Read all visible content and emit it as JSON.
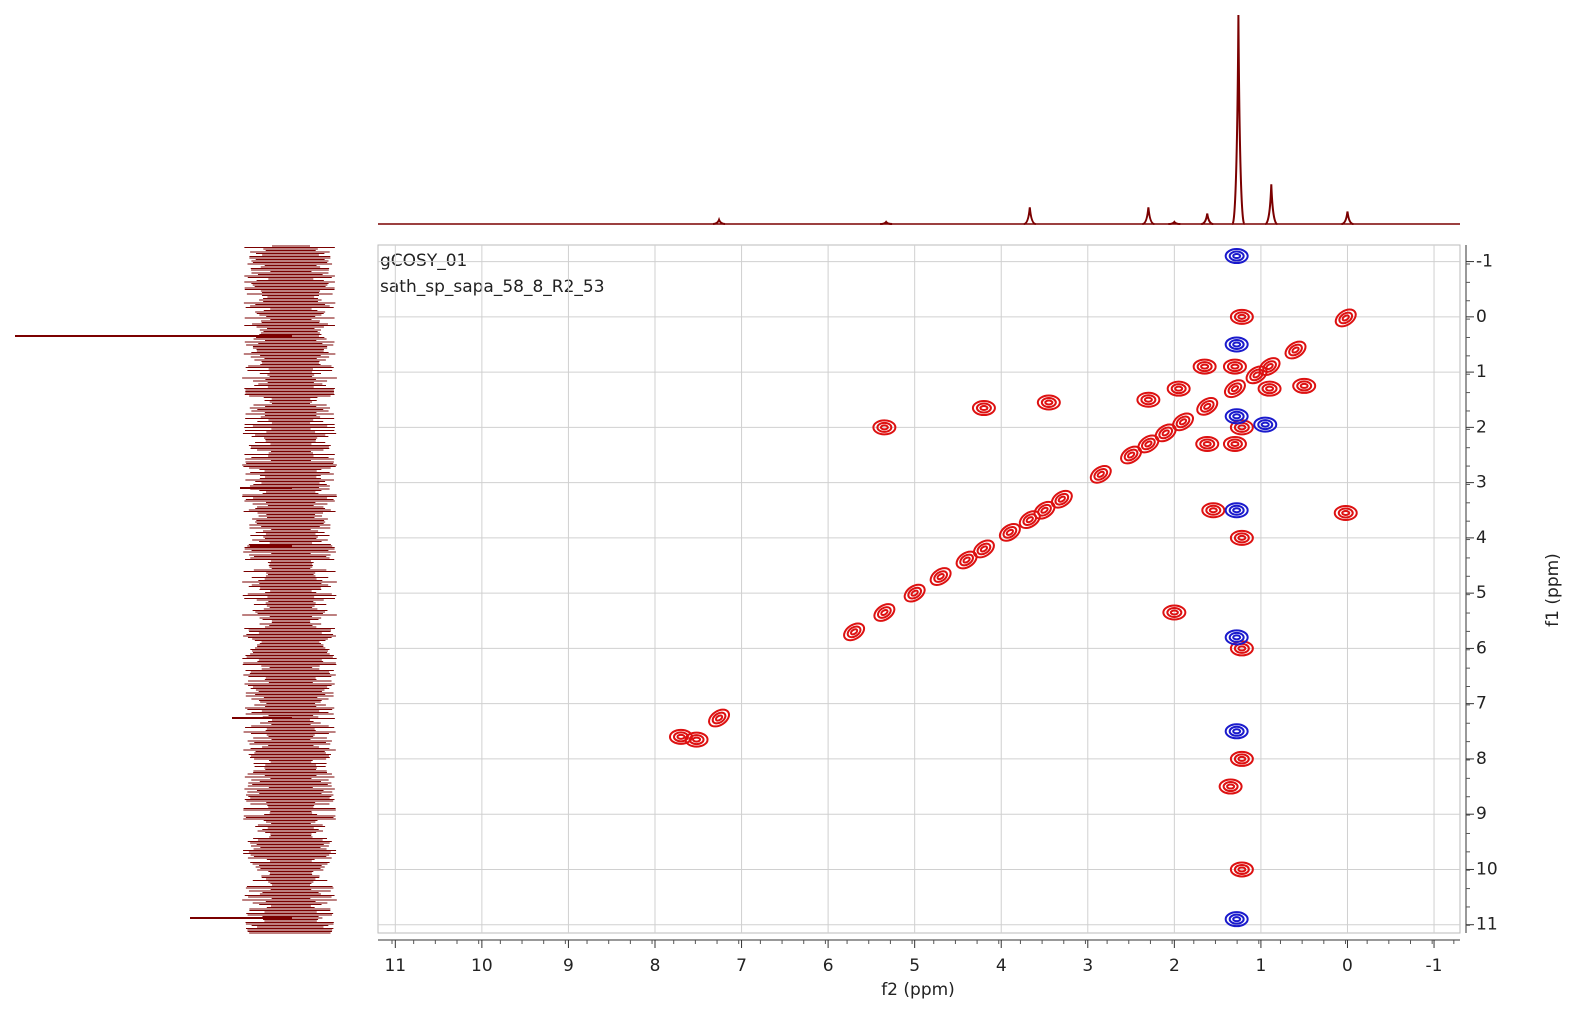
{
  "chart_data": {
    "type": "contour",
    "annotations": [
      "gCOSY_01",
      "sath_sp_sapa_58_8_R2_53"
    ],
    "x_label": "f2 (ppm)",
    "y_label": "f1 (ppm)",
    "xlim": [
      11.2,
      -1.3
    ],
    "ylim": [
      -1.3,
      11.15
    ],
    "xticks": [
      11,
      10,
      9,
      8,
      7,
      6,
      5,
      4,
      3,
      2,
      1,
      0,
      -1
    ],
    "yticks": [
      -1,
      0,
      1,
      2,
      3,
      4,
      5,
      6,
      7,
      8,
      9,
      10,
      11
    ],
    "grid": true,
    "projection": {
      "color": "#7b0000",
      "ylim": [
        0,
        100
      ],
      "x": [
        7.26,
        5.33,
        3.67,
        2.3,
        2.0,
        1.62,
        1.26,
        0.88,
        0.0
      ],
      "values": [
        2,
        1,
        8,
        8,
        1,
        5,
        100,
        19,
        6
      ]
    },
    "series": [
      {
        "name": "positive",
        "color": "#dd1111",
        "x": [
          5.7,
          5.35,
          5.0,
          4.7,
          4.4,
          4.2,
          3.9,
          3.67,
          3.5,
          3.3,
          2.85,
          2.5,
          2.3,
          2.1,
          1.9,
          1.62,
          1.3,
          1.05,
          0.9,
          0.6,
          0.02,
          5.35,
          4.2,
          3.45,
          2.3,
          1.95,
          1.62,
          1.3,
          1.3,
          0.9,
          0.5,
          1.55,
          0.02,
          7.7,
          7.52,
          7.26,
          1.35,
          2.0,
          1.65,
          1.22,
          1.22,
          1.22,
          1.22,
          1.22,
          1.22
        ],
        "values": [
          5.7,
          5.35,
          5.0,
          4.7,
          4.4,
          4.2,
          3.9,
          3.67,
          3.5,
          3.3,
          2.85,
          2.5,
          2.3,
          2.1,
          1.9,
          1.62,
          1.3,
          1.05,
          0.9,
          0.6,
          0.02,
          2.0,
          1.65,
          1.55,
          1.5,
          1.3,
          2.3,
          0.9,
          2.3,
          1.3,
          1.25,
          3.5,
          3.55,
          7.6,
          7.65,
          7.26,
          8.5,
          5.35,
          0.9,
          0.0,
          2.0,
          4.0,
          6.0,
          8.0,
          10.0
        ]
      },
      {
        "name": "negative",
        "color": "#1a1acc",
        "x": [
          1.28,
          1.28,
          1.28,
          1.28,
          1.28,
          1.28,
          1.28,
          0.95
        ],
        "values": [
          -1.1,
          0.5,
          1.8,
          3.5,
          5.8,
          7.5,
          10.9,
          1.95
        ]
      }
    ]
  }
}
